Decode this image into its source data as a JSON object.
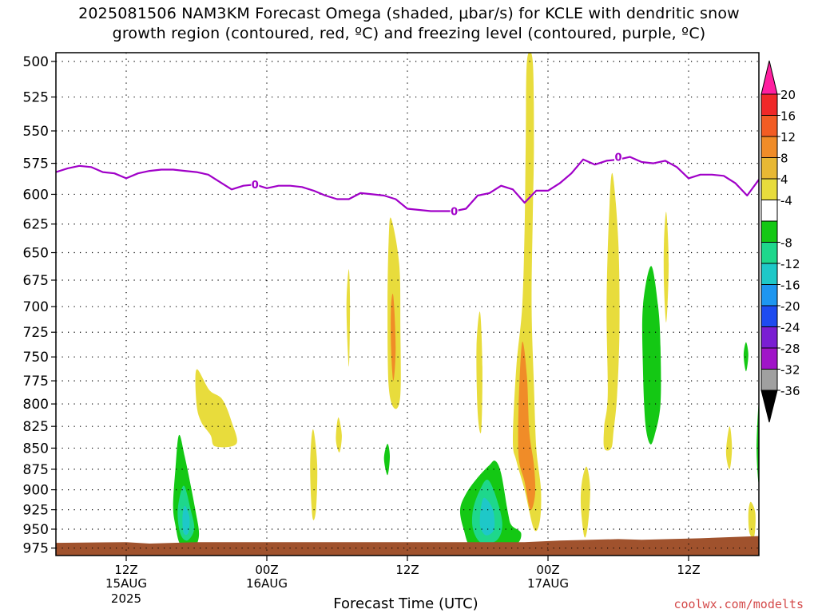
{
  "title_line1": "2025081506 NAM3KM Forecast Omega (shaded, μbar/s) for KCLE with dendritic snow",
  "title_line2": "growth region (contoured, red, ºC) and freezing level (contoured, purple, ºC)",
  "credit": "coolwx.com/modelts",
  "chart_data": {
    "type": "contour",
    "xlabel": "Forecast Time (UTC)",
    "ylabel": "",
    "y_axis": {
      "ticks": [
        500,
        525,
        550,
        575,
        600,
        625,
        650,
        675,
        700,
        725,
        750,
        775,
        800,
        825,
        850,
        875,
        900,
        925,
        950,
        975
      ],
      "range": [
        500,
        985
      ],
      "scale": "log-pressure"
    },
    "x_axis": {
      "range_hours": [
        0,
        60
      ],
      "ticks": [
        {
          "hour": 6,
          "label": "12Z",
          "sub": "15AUG",
          "sub2": "2025"
        },
        {
          "hour": 18,
          "label": "00Z",
          "sub": "16AUG",
          "sub2": ""
        },
        {
          "hour": 30,
          "label": "12Z",
          "sub": "",
          "sub2": ""
        },
        {
          "hour": 42,
          "label": "00Z",
          "sub": "17AUG",
          "sub2": ""
        },
        {
          "hour": 54,
          "label": "12Z",
          "sub": "",
          "sub2": ""
        }
      ]
    },
    "colorbar": {
      "labels": [
        "20",
        "16",
        "12",
        "8",
        "4",
        "-4",
        "-8",
        "-12",
        "-16",
        "-20",
        "-24",
        "-28",
        "-32",
        "-36"
      ],
      "colors": [
        "#ff1fa0",
        "#f02828",
        "#f25c24",
        "#f08c28",
        "#e8b834",
        "#e8dc3c",
        "#ffffff",
        "#14c814",
        "#1ed78c",
        "#1ec8c8",
        "#1e96f0",
        "#1e4bf0",
        "#7a1ed2",
        "#a014c8",
        "#a0a0a0",
        "#000000"
      ]
    },
    "freezing_level": {
      "label": "0",
      "color": "#a000c8",
      "points": [
        [
          0,
          582
        ],
        [
          1,
          579
        ],
        [
          2,
          577
        ],
        [
          3,
          578
        ],
        [
          4,
          582
        ],
        [
          5,
          583
        ],
        [
          6,
          587
        ],
        [
          7,
          583
        ],
        [
          8,
          581
        ],
        [
          9,
          580
        ],
        [
          10,
          580
        ],
        [
          11,
          581
        ],
        [
          12,
          582
        ],
        [
          13,
          584
        ],
        [
          14,
          590
        ],
        [
          15,
          596
        ],
        [
          16,
          593
        ],
        [
          17,
          592
        ],
        [
          18,
          595
        ],
        [
          19,
          593
        ],
        [
          20,
          593
        ],
        [
          21,
          594
        ],
        [
          22,
          597
        ],
        [
          23,
          601
        ],
        [
          24,
          604
        ],
        [
          25,
          604
        ],
        [
          26,
          599
        ],
        [
          27,
          600
        ],
        [
          28,
          601
        ],
        [
          29,
          604
        ],
        [
          30,
          612
        ],
        [
          31,
          613
        ],
        [
          32,
          614
        ],
        [
          33,
          614
        ],
        [
          34,
          614
        ],
        [
          35,
          612
        ],
        [
          36,
          601
        ],
        [
          37,
          599
        ],
        [
          38,
          593
        ],
        [
          39,
          596
        ],
        [
          40,
          607
        ],
        [
          41,
          597
        ],
        [
          42,
          597
        ],
        [
          43,
          591
        ],
        [
          44,
          583
        ],
        [
          45,
          572
        ],
        [
          46,
          576
        ],
        [
          47,
          573
        ],
        [
          48,
          572
        ],
        [
          49,
          570
        ],
        [
          50,
          574
        ],
        [
          51,
          575
        ],
        [
          52,
          573
        ],
        [
          53,
          578
        ],
        [
          54,
          587
        ],
        [
          55,
          584
        ],
        [
          56,
          584
        ],
        [
          57,
          585
        ],
        [
          58,
          591
        ],
        [
          59,
          601
        ],
        [
          60,
          588
        ]
      ],
      "label_at": [
        [
          17,
          592
        ],
        [
          34,
          614
        ],
        [
          48,
          570
        ]
      ]
    },
    "omega_regions": [
      {
        "name": "neg-1",
        "value_class": "-4 to -8",
        "color": "#14c814",
        "points": [
          [
            10.5,
            835
          ],
          [
            11,
            860
          ],
          [
            11.9,
            925
          ],
          [
            12.2,
            960
          ],
          [
            11.5,
            980
          ],
          [
            10.6,
            970
          ],
          [
            10.2,
            945
          ],
          [
            10.0,
            920
          ],
          [
            10.2,
            875
          ]
        ]
      },
      {
        "name": "neg-1-core",
        "value_class": "-8 to -12",
        "color": "#1ed78c",
        "points": [
          [
            10.9,
            895
          ],
          [
            11.5,
            925
          ],
          [
            11.8,
            950
          ],
          [
            11.2,
            965
          ],
          [
            10.6,
            955
          ],
          [
            10.4,
            925
          ]
        ]
      },
      {
        "name": "neg-1-core2",
        "value_class": "-12 to -16",
        "color": "#1ec8c8",
        "points": [
          [
            11.0,
            920
          ],
          [
            11.4,
            935
          ],
          [
            11.3,
            955
          ],
          [
            10.9,
            955
          ],
          [
            10.8,
            935
          ]
        ]
      },
      {
        "name": "neg-2",
        "value_class": "-4 to -8",
        "color": "#14c814",
        "points": [
          [
            37.5,
            865
          ],
          [
            38,
            880
          ],
          [
            38.6,
            930
          ],
          [
            38.9,
            945
          ],
          [
            39.7,
            955
          ],
          [
            39.3,
            970
          ],
          [
            37.5,
            978
          ],
          [
            35.5,
            975
          ],
          [
            34.8,
            950
          ],
          [
            34.5,
            925
          ],
          [
            35,
            905
          ],
          [
            36,
            885
          ],
          [
            37,
            870
          ]
        ]
      },
      {
        "name": "neg-2-core",
        "value_class": "-8 to -12",
        "color": "#1ed78c",
        "points": [
          [
            36.9,
            888
          ],
          [
            37.7,
            915
          ],
          [
            38.1,
            945
          ],
          [
            37.6,
            965
          ],
          [
            36.3,
            968
          ],
          [
            35.6,
            950
          ],
          [
            35.6,
            925
          ],
          [
            36.2,
            900
          ]
        ]
      },
      {
        "name": "neg-2-core2",
        "value_class": "-12 to -16",
        "color": "#1ec8c8",
        "points": [
          [
            36.6,
            910
          ],
          [
            37.3,
            925
          ],
          [
            37.4,
            950
          ],
          [
            36.7,
            958
          ],
          [
            36.2,
            945
          ],
          [
            36.3,
            920
          ]
        ]
      },
      {
        "name": "neg-3",
        "value_class": "-4 to -8",
        "color": "#14c814",
        "points": [
          [
            50.8,
            662
          ],
          [
            51.4,
            700
          ],
          [
            51.6,
            740
          ],
          [
            51.6,
            800
          ],
          [
            51.1,
            835
          ],
          [
            50.7,
            845
          ],
          [
            50.3,
            820
          ],
          [
            50.1,
            760
          ],
          [
            50.1,
            700
          ]
        ]
      },
      {
        "name": "neg-4",
        "value_class": "-4 to -8",
        "color": "#14c814",
        "points": [
          [
            28.3,
            845
          ],
          [
            28.5,
            860
          ],
          [
            28.3,
            882
          ],
          [
            28.0,
            862
          ]
        ]
      },
      {
        "name": "neg-5",
        "value_class": "-4 to -8",
        "color": "#14c814",
        "points": [
          [
            58.9,
            735
          ],
          [
            59.1,
            748
          ],
          [
            58.9,
            765
          ],
          [
            58.7,
            748
          ]
        ]
      },
      {
        "name": "neg-6",
        "value_class": "-4 to -8",
        "color": "#14c814",
        "points": [
          [
            60,
            800
          ],
          [
            60,
            890
          ],
          [
            59.8,
            850
          ]
        ]
      },
      {
        "name": "pos-1",
        "value_class": "4 to 8",
        "color": "#e8dc3c",
        "points": [
          [
            12,
            763
          ],
          [
            13.1,
            785
          ],
          [
            14.2,
            795
          ],
          [
            15.0,
            820
          ],
          [
            15.4,
            845
          ],
          [
            13.6,
            848
          ],
          [
            13.2,
            835
          ],
          [
            12.4,
            820
          ],
          [
            12.0,
            800
          ]
        ]
      },
      {
        "name": "pos-2",
        "value_class": "4 to 8",
        "color": "#e8dc3c",
        "points": [
          [
            28.6,
            620
          ],
          [
            29.3,
            660
          ],
          [
            29.4,
            720
          ],
          [
            29.4,
            790
          ],
          [
            28.9,
            805
          ],
          [
            28.4,
            780
          ],
          [
            28.3,
            700
          ],
          [
            28.4,
            640
          ]
        ]
      },
      {
        "name": "pos-2-core",
        "value_class": "8 to 12",
        "color": "#f08c28",
        "points": [
          [
            28.8,
            690
          ],
          [
            29.0,
            740
          ],
          [
            28.8,
            775
          ],
          [
            28.6,
            740
          ],
          [
            28.6,
            700
          ]
        ]
      },
      {
        "name": "pos-3",
        "value_class": "4 to 8",
        "color": "#e8dc3c",
        "points": [
          [
            25.0,
            665
          ],
          [
            25.1,
            700
          ],
          [
            25.0,
            760
          ],
          [
            24.8,
            700
          ]
        ]
      },
      {
        "name": "pos-4",
        "value_class": "4 to 8",
        "color": "#e8dc3c",
        "points": [
          [
            22,
            830
          ],
          [
            22.3,
            870
          ],
          [
            22.2,
            925
          ],
          [
            21.9,
            935
          ],
          [
            21.7,
            880
          ],
          [
            21.8,
            840
          ]
        ]
      },
      {
        "name": "pos-5",
        "value_class": "4 to 8",
        "color": "#e8dc3c",
        "points": [
          [
            24.1,
            815
          ],
          [
            24.4,
            835
          ],
          [
            24.2,
            855
          ],
          [
            23.9,
            840
          ]
        ]
      },
      {
        "name": "pos-6",
        "value_class": "4 to 8",
        "color": "#e8dc3c",
        "points": [
          [
            36.2,
            705
          ],
          [
            36.4,
            760
          ],
          [
            36.3,
            830
          ],
          [
            36.0,
            810
          ],
          [
            35.9,
            740
          ]
        ]
      },
      {
        "name": "pos-7",
        "value_class": "4 to 8",
        "color": "#e8dc3c",
        "points": [
          [
            40.2,
            500
          ],
          [
            40.7,
            500
          ],
          [
            40.8,
            560
          ],
          [
            40.7,
            620
          ],
          [
            40.6,
            700
          ],
          [
            40.8,
            780
          ],
          [
            41.0,
            850
          ],
          [
            41.4,
            900
          ],
          [
            41.3,
            940
          ],
          [
            40.8,
            950
          ],
          [
            40.0,
            900
          ],
          [
            39.3,
            865
          ],
          [
            39.0,
            840
          ],
          [
            39.3,
            760
          ],
          [
            39.8,
            700
          ],
          [
            40.0,
            630
          ],
          [
            40.1,
            560
          ]
        ]
      },
      {
        "name": "pos-7-core",
        "value_class": "8 to 12",
        "color": "#f08c28",
        "points": [
          [
            39.8,
            735
          ],
          [
            40.2,
            770
          ],
          [
            40.4,
            830
          ],
          [
            40.8,
            870
          ],
          [
            40.9,
            905
          ],
          [
            40.5,
            925
          ],
          [
            40.0,
            890
          ],
          [
            39.5,
            860
          ],
          [
            39.5,
            800
          ]
        ]
      },
      {
        "name": "pos-8",
        "value_class": "4 to 8",
        "color": "#e8dc3c",
        "points": [
          [
            45.3,
            872
          ],
          [
            45.6,
            900
          ],
          [
            45.4,
            945
          ],
          [
            45.1,
            960
          ],
          [
            44.8,
            920
          ],
          [
            44.9,
            890
          ]
        ]
      },
      {
        "name": "pos-9",
        "value_class": "4 to 8",
        "color": "#e8dc3c",
        "points": [
          [
            47.5,
            583
          ],
          [
            48.0,
            640
          ],
          [
            48.1,
            720
          ],
          [
            47.9,
            790
          ],
          [
            47.6,
            830
          ],
          [
            47.4,
            850
          ],
          [
            46.8,
            850
          ],
          [
            46.8,
            825
          ],
          [
            47.1,
            790
          ],
          [
            47.0,
            700
          ],
          [
            47.2,
            620
          ]
        ]
      },
      {
        "name": "pos-10",
        "value_class": "4 to 8",
        "color": "#e8dc3c",
        "points": [
          [
            52.1,
            615
          ],
          [
            52.3,
            660
          ],
          [
            52.1,
            715
          ],
          [
            51.9,
            680
          ],
          [
            51.9,
            640
          ]
        ]
      },
      {
        "name": "pos-11",
        "value_class": "4 to 8",
        "color": "#e8dc3c",
        "points": [
          [
            57.5,
            825
          ],
          [
            57.7,
            850
          ],
          [
            57.5,
            875
          ],
          [
            57.2,
            855
          ]
        ]
      },
      {
        "name": "pos-12",
        "value_class": "4 to 8",
        "color": "#e8dc3c",
        "points": [
          [
            59.3,
            915
          ],
          [
            59.7,
            930
          ],
          [
            59.6,
            960
          ],
          [
            59.2,
            955
          ],
          [
            59.1,
            930
          ]
        ]
      }
    ],
    "terrain": {
      "color": "#a0522d",
      "points": [
        [
          0,
          968
        ],
        [
          6,
          967
        ],
        [
          8,
          969
        ],
        [
          12,
          967
        ],
        [
          20,
          967
        ],
        [
          40,
          967
        ],
        [
          43,
          965
        ],
        [
          48,
          963
        ],
        [
          50,
          964
        ],
        [
          55,
          962
        ],
        [
          60,
          959
        ]
      ]
    }
  }
}
